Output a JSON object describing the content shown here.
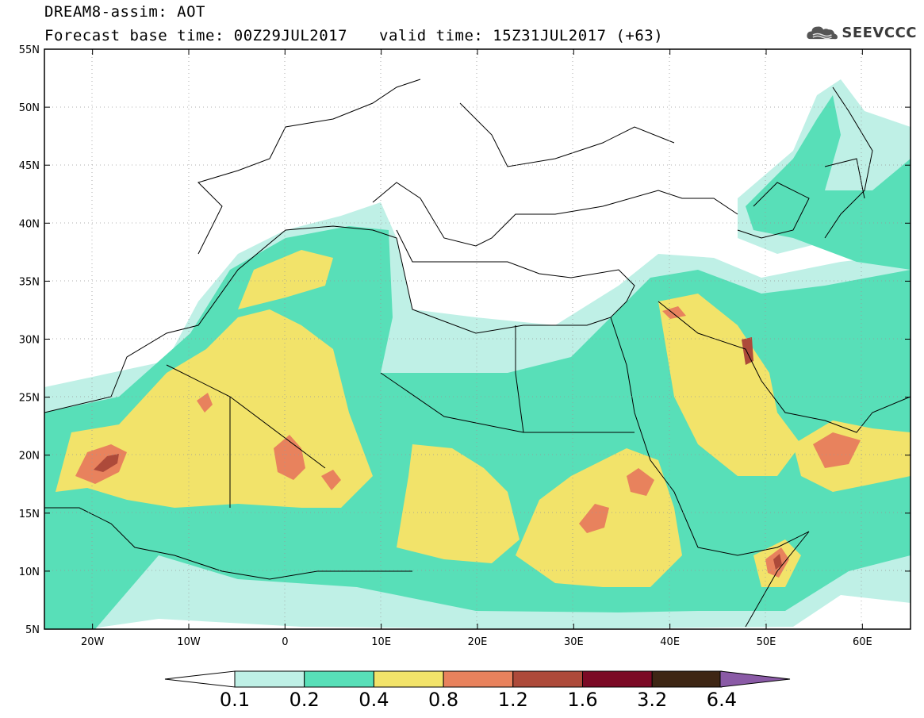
{
  "header": {
    "title": "DREAM8-assim: AOT",
    "base_time": "Forecast base time: 00Z29JUL2017",
    "valid_time": "valid time: 15Z31JUL2017 (+63)",
    "logo_text": "SEEVCCC",
    "logo_icon": "cloud-icon"
  },
  "map": {
    "lon_labels": [
      "20W",
      "10W",
      "0",
      "10E",
      "20E",
      "30E",
      "40E",
      "50E",
      "60E"
    ],
    "lat_labels": [
      "55N",
      "50N",
      "45N",
      "40N",
      "35N",
      "30N",
      "25N",
      "20N",
      "15N",
      "10N",
      "5N"
    ],
    "lon_range": [
      -25,
      65
    ],
    "lat_range": [
      5,
      55
    ],
    "grid": "dotted"
  },
  "colorbar": {
    "labels": [
      "0.1",
      "0.2",
      "0.4",
      "0.8",
      "1.2",
      "1.6",
      "3.2",
      "6.4"
    ],
    "colors": [
      "#bff0e6",
      "#58dfb8",
      "#f2e36a",
      "#e8825d",
      "#ad4a3a",
      "#7b0a25",
      "#3e2614",
      "#8a5aa6"
    ]
  }
}
